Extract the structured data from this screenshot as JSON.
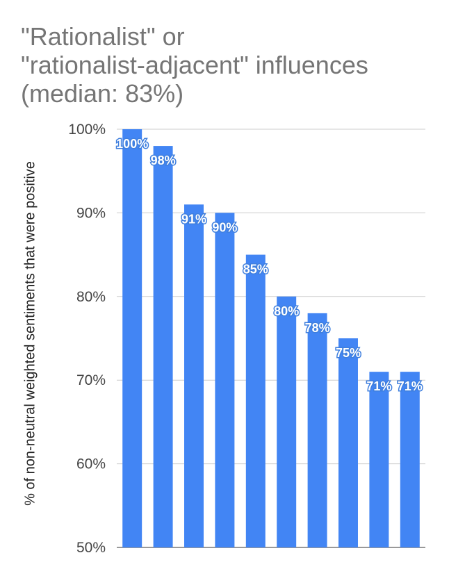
{
  "chart_data": {
    "type": "bar",
    "title_lines": [
      "\"Rationalist\" or",
      "\"rationalist-adjacent\" influences",
      "(median: 83%)"
    ],
    "xlabel": "",
    "ylabel": "% of non-neutral weighted sentiments that were positive",
    "ylim": [
      50,
      100
    ],
    "yticks": [
      "100%",
      "90%",
      "80%",
      "70%",
      "60%",
      "50%"
    ],
    "ytick_values": [
      100,
      90,
      80,
      70,
      60,
      50
    ],
    "values": [
      100,
      98,
      91,
      90,
      85,
      80,
      78,
      75,
      71,
      71
    ],
    "data_labels": [
      "100%",
      "98%",
      "91%",
      "90%",
      "85%",
      "80%",
      "78%",
      "75%",
      "71%",
      "71%"
    ],
    "bar_color": "#4285f4",
    "grid": true
  }
}
